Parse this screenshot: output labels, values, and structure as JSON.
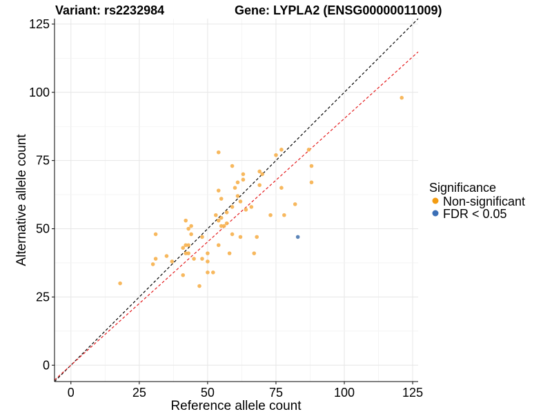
{
  "chart_data": {
    "type": "scatter",
    "title_left": "Variant: rs2232984",
    "title_right": "Gene: LYPLA2 (ENSG00000011009)",
    "xlabel": "Reference allele count",
    "ylabel": "Alternative allele count",
    "xlim": [
      -6,
      127
    ],
    "ylim": [
      -6,
      127
    ],
    "xticks": [
      0,
      25,
      50,
      75,
      100,
      125
    ],
    "yticks": [
      0,
      25,
      50,
      75,
      100,
      125
    ],
    "grid": true,
    "legend": {
      "title": "Significance",
      "position": "right",
      "entries": [
        {
          "label": "Non-significant",
          "color": "#F39C12"
        },
        {
          "label": "FDR < 0.05",
          "color": "#3B6FB6"
        }
      ]
    },
    "reference_lines": [
      {
        "type": "identity",
        "slope": 1,
        "intercept": 0,
        "color": "#000000",
        "style": "dashed"
      },
      {
        "type": "expected",
        "slope": 0.904,
        "intercept": 0,
        "color": "#E41A1C",
        "style": "dashed"
      }
    ],
    "series": [
      {
        "name": "Non-significant",
        "color": "#F6B04C",
        "points": [
          [
            18,
            30
          ],
          [
            30,
            37
          ],
          [
            31,
            39
          ],
          [
            31,
            48
          ],
          [
            35,
            40
          ],
          [
            37,
            38
          ],
          [
            41,
            33
          ],
          [
            41,
            43
          ],
          [
            42,
            53
          ],
          [
            42,
            44
          ],
          [
            42,
            41
          ],
          [
            43,
            44
          ],
          [
            43,
            41
          ],
          [
            43,
            50
          ],
          [
            44,
            51
          ],
          [
            44,
            48
          ],
          [
            45,
            39
          ],
          [
            47,
            29
          ],
          [
            48,
            47
          ],
          [
            48,
            39
          ],
          [
            50,
            41
          ],
          [
            50,
            38
          ],
          [
            50,
            34
          ],
          [
            52,
            34
          ],
          [
            53,
            55
          ],
          [
            54,
            78
          ],
          [
            54,
            64
          ],
          [
            54,
            53
          ],
          [
            54,
            44
          ],
          [
            55,
            61
          ],
          [
            55,
            54
          ],
          [
            55,
            51
          ],
          [
            56,
            51
          ],
          [
            57,
            52
          ],
          [
            57,
            56
          ],
          [
            58,
            41
          ],
          [
            59,
            58
          ],
          [
            59,
            73
          ],
          [
            59,
            48
          ],
          [
            60,
            65
          ],
          [
            61,
            67
          ],
          [
            61,
            62
          ],
          [
            62,
            47
          ],
          [
            62,
            60
          ],
          [
            63,
            70
          ],
          [
            63,
            68
          ],
          [
            64,
            57
          ],
          [
            66,
            58
          ],
          [
            67,
            41
          ],
          [
            68,
            47
          ],
          [
            69,
            71
          ],
          [
            69,
            66
          ],
          [
            70,
            70
          ],
          [
            73,
            55
          ],
          [
            75,
            77
          ],
          [
            77,
            79
          ],
          [
            77,
            65
          ],
          [
            78,
            55
          ],
          [
            82,
            59
          ],
          [
            87,
            79
          ],
          [
            88,
            73
          ],
          [
            88,
            67
          ],
          [
            121,
            98
          ]
        ]
      },
      {
        "name": "FDR < 0.05",
        "color": "#4A78B0",
        "points": [
          [
            83,
            47
          ]
        ]
      }
    ]
  }
}
